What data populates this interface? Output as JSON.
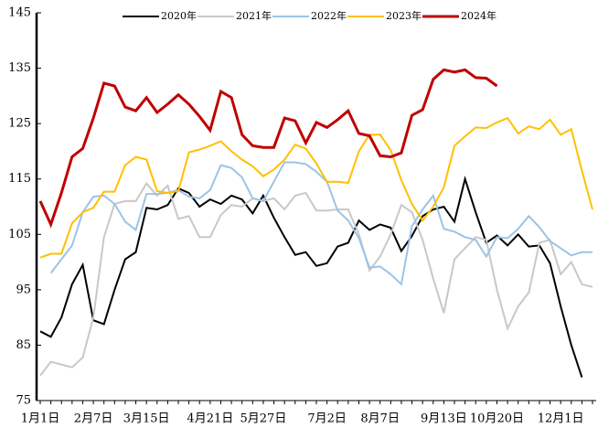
{
  "chart_data": {
    "type": "line",
    "categories": [
      "1月1日",
      null,
      null,
      null,
      null,
      "2月7日",
      null,
      null,
      null,
      null,
      "3月15日",
      null,
      null,
      null,
      null,
      null,
      "4月21日",
      null,
      null,
      null,
      null,
      "5月27日",
      null,
      null,
      null,
      null,
      null,
      "7月2日",
      null,
      null,
      null,
      null,
      "8月7日",
      null,
      null,
      null,
      null,
      null,
      "9月13日",
      null,
      null,
      null,
      null,
      "10月20日",
      null,
      null,
      null,
      null,
      null,
      "12月1日",
      null,
      null,
      null
    ],
    "series": [
      {
        "name": "2020年",
        "color": "#000000",
        "values": [
          87.5,
          86.5,
          90,
          96,
          99.5,
          89.5,
          88.8,
          95,
          100.5,
          101.8,
          109.8,
          109.5,
          110.3,
          113.3,
          112.5,
          110,
          111.3,
          110.5,
          112,
          111.3,
          108.8,
          112,
          108,
          104.5,
          101.3,
          101.8,
          99.3,
          99.8,
          102.8,
          103.5,
          107.5,
          105.8,
          106.8,
          106.2,
          102,
          104.7,
          108.3,
          109.5,
          110,
          107.3,
          115,
          109,
          103.5,
          104.8,
          103,
          105,
          102.8,
          103,
          99.8,
          92,
          85,
          79.2,
          null
        ]
      },
      {
        "name": "2021年",
        "color": "#c8c8c8",
        "values": [
          79.5,
          82,
          81.5,
          81,
          82.8,
          90,
          104.5,
          110.5,
          111,
          111,
          114.2,
          112,
          113.8,
          107.8,
          108.3,
          104.5,
          104.5,
          108.5,
          110.3,
          110,
          111.5,
          111,
          111.5,
          109.5,
          112,
          112.5,
          109.3,
          109.3,
          109.5,
          109.5,
          105,
          98.5,
          101,
          105,
          110.3,
          109,
          104,
          97,
          90.8,
          100.5,
          102.5,
          104.5,
          104,
          95,
          88,
          92,
          94.5,
          103.5,
          104,
          97.8,
          100,
          96,
          95.5
        ]
      },
      {
        "name": "2022年",
        "color": "#9dc3e6",
        "values": [
          null,
          98,
          100.5,
          103,
          109,
          111.8,
          112,
          110.5,
          107.3,
          105.8,
          112.3,
          112.3,
          112.5,
          113,
          111.8,
          111.5,
          113,
          117.5,
          117,
          115.3,
          111.5,
          111,
          114.5,
          118,
          118,
          117.7,
          116.3,
          114.5,
          109.3,
          107.5,
          104.3,
          99,
          99.2,
          97.8,
          96,
          106.5,
          109.5,
          112,
          106,
          105.5,
          104.5,
          104,
          101,
          104.5,
          104.3,
          106,
          108.3,
          106.3,
          103.8,
          102.5,
          101.2,
          101.8,
          101.8
        ]
      },
      {
        "name": "2023年",
        "color": "#ffc000",
        "values": [
          100.8,
          101.5,
          101.5,
          107,
          109,
          109.8,
          112.7,
          112.7,
          117.5,
          119,
          118.5,
          112.8,
          112.5,
          112.8,
          119.8,
          120.3,
          121,
          121.8,
          120,
          118.5,
          117.3,
          115.5,
          116.7,
          118.5,
          121.2,
          120.5,
          117.8,
          114.5,
          114.5,
          114.3,
          120,
          123,
          123,
          120.2,
          114.8,
          110.5,
          107.5,
          110,
          113.5,
          121,
          122.7,
          124.3,
          124.2,
          125.2,
          126,
          123.2,
          124.5,
          124,
          125.7,
          123,
          124,
          116.5,
          109.5
        ]
      },
      {
        "name": "2024年",
        "color": "#c00000",
        "width": 3,
        "values": [
          111,
          106.8,
          112.5,
          119,
          120.5,
          126,
          132.3,
          131.8,
          128,
          127.3,
          129.7,
          127,
          128.5,
          130.2,
          128.5,
          126.3,
          123.8,
          130.8,
          129.7,
          123,
          121,
          120.7,
          120.7,
          126,
          125.5,
          121.5,
          125.2,
          124.3,
          125.7,
          127.3,
          123.2,
          122.8,
          119.2,
          119,
          119.7,
          126.5,
          127.5,
          133,
          134.7,
          134.3,
          134.7,
          133.3,
          133.2,
          131.8,
          null,
          null,
          null,
          null,
          null,
          null,
          null,
          null,
          null
        ]
      }
    ],
    "ylim": [
      75,
      145
    ],
    "yticks": [
      75,
      85,
      95,
      105,
      115,
      125,
      135,
      145
    ],
    "grid": false
  }
}
